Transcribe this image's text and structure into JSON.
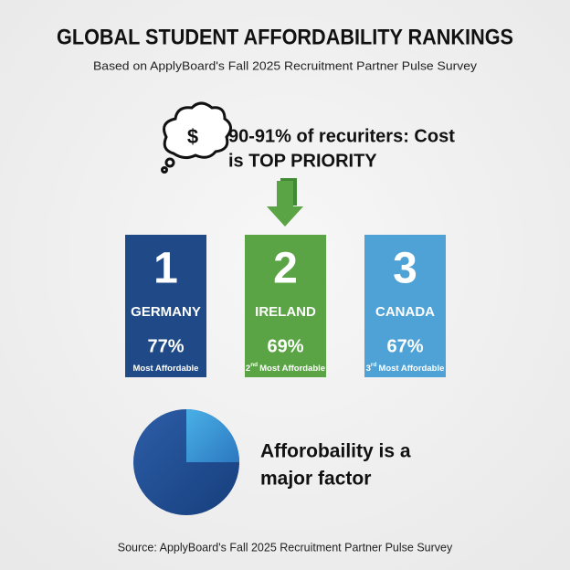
{
  "header": {
    "title": "GLOBAL STUDENT AFFORDABILITY RANKINGS",
    "subtitle": "Based on ApplyBoard's Fall 2025 Recruitment Partner Pulse Survey"
  },
  "callout": {
    "icon_symbol": "$",
    "lines": [
      "90-91% of recuriters: Cost",
      "is TOP PRIORITY"
    ]
  },
  "cards": [
    {
      "rank": 1,
      "country": "GERMANY",
      "percent": "77%",
      "label": "Most Affordable",
      "color": "#1f4a87"
    },
    {
      "rank": 2,
      "country": "IRELAND",
      "percent": "69%",
      "ordinal": 2,
      "ordinal_suffix": "nd",
      "label": "Most Affordable",
      "color": "#5aa445"
    },
    {
      "rank": 3,
      "country": "CANADA",
      "percent": "67%",
      "ordinal": 3,
      "ordinal_suffix": "rd",
      "label": "Most Affordable",
      "color": "#4ea2d6"
    }
  ],
  "factor": {
    "lines": [
      "Afforobaility is a",
      "major factor"
    ]
  },
  "source": "Source: ApplyBoard's Fall 2025 Recruitment Partner Pulse Survey"
}
